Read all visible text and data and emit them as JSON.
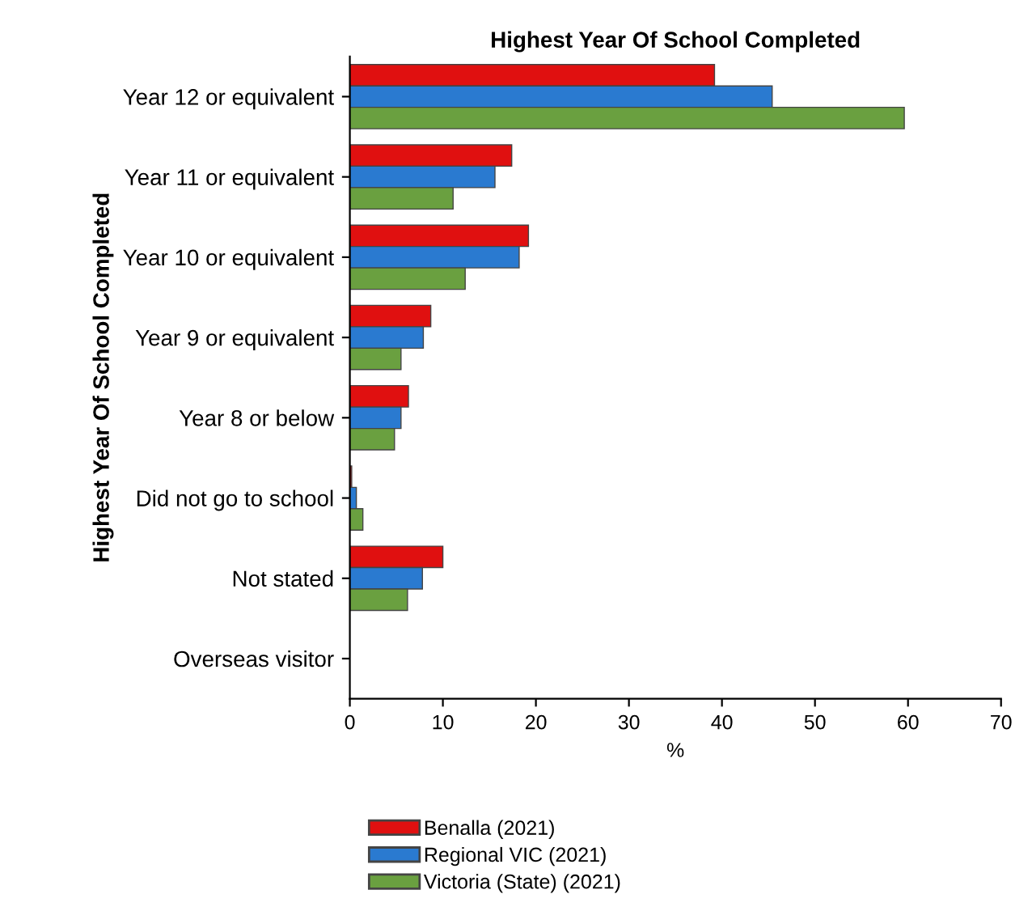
{
  "chart_data": {
    "type": "bar",
    "orientation": "horizontal",
    "title": "Highest Year Of School Completed",
    "xlabel": "%",
    "ylabel": "Highest Year Of School Completed",
    "categories": [
      "Year 12 or equivalent",
      "Year 11 or equivalent",
      "Year 10 or equivalent",
      "Year 9 or equivalent",
      "Year 8 or below",
      "Did not go to school",
      "Not stated",
      "Overseas visitor"
    ],
    "series": [
      {
        "name": "Benalla (2021)",
        "color": "#e01010",
        "values": [
          39.2,
          17.4,
          19.2,
          8.7,
          6.3,
          0.2,
          10.0,
          0
        ]
      },
      {
        "name": "Regional VIC (2021)",
        "color": "#2a7ad0",
        "values": [
          45.4,
          15.6,
          18.2,
          7.9,
          5.5,
          0.7,
          7.8,
          0
        ]
      },
      {
        "name": "Victoria (State) (2021)",
        "color": "#6aa040",
        "values": [
          59.6,
          11.1,
          12.4,
          5.5,
          4.8,
          1.4,
          6.2,
          0
        ]
      }
    ],
    "xlim": [
      0,
      70
    ],
    "xticks": [
      0,
      10,
      20,
      30,
      40,
      50,
      60,
      70
    ],
    "grid": false,
    "legend": "bottom left"
  }
}
